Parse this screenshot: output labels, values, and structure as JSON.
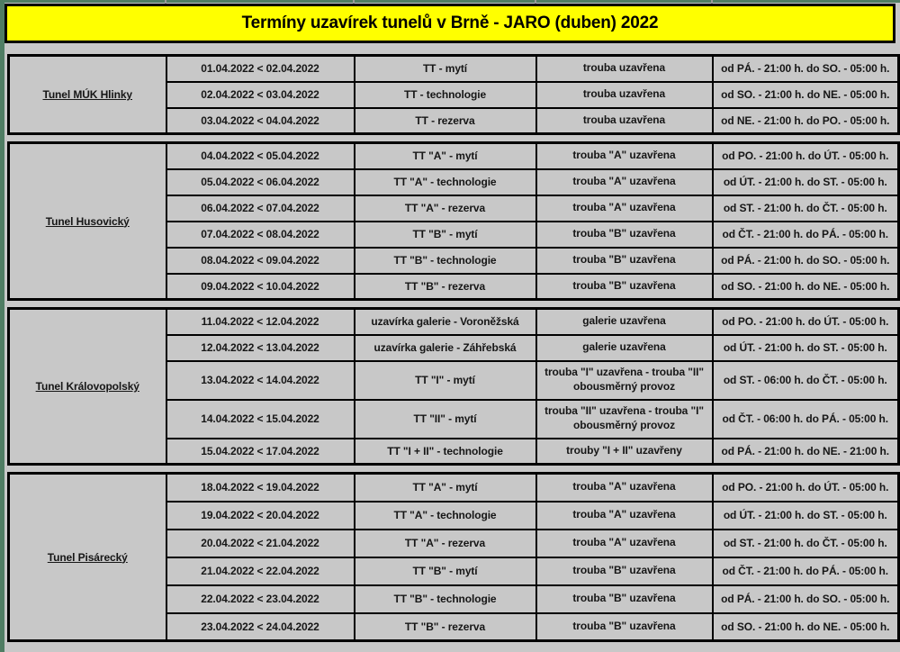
{
  "header": {
    "title": "Termíny uzavírek tunelů v Brně - JARO (duben) 2022"
  },
  "colors": {
    "title_bg": "#ffff00",
    "page_bg": "#c8c8c8",
    "grid_border": "#000000",
    "frame_green": "#4f7d63",
    "text": "#161616"
  },
  "table": {
    "groups": [
      {
        "tunnel": "Tunel MÚK Hlinky",
        "rows": [
          {
            "dates": "01.04.2022 < 02.04.2022",
            "closure": "TT - mytí",
            "status": "trouba uzavřena",
            "time": "od PÁ. - 21:00 h. do SO. - 05:00 h."
          },
          {
            "dates": "02.04.2022 < 03.04.2022",
            "closure": "TT - technologie",
            "status": "trouba uzavřena",
            "time": "od SO. - 21:00 h. do NE. - 05:00 h."
          },
          {
            "dates": "03.04.2022 < 04.04.2022",
            "closure": "TT - rezerva",
            "status": "trouba uzavřena",
            "time": "od NE. - 21:00 h. do PO. - 05:00 h."
          }
        ]
      },
      {
        "tunnel": "Tunel Husovický",
        "rows": [
          {
            "dates": "04.04.2022 < 05.04.2022",
            "closure": "TT \"A\" - mytí",
            "status": "trouba \"A\" uzavřena",
            "time": "od PO. - 21:00 h. do ÚT. - 05:00 h."
          },
          {
            "dates": "05.04.2022 < 06.04.2022",
            "closure": "TT \"A\" - technologie",
            "status": "trouba \"A\" uzavřena",
            "time": "od ÚT. - 21:00 h. do ST. - 05:00 h."
          },
          {
            "dates": "06.04.2022 < 07.04.2022",
            "closure": "TT \"A\" - rezerva",
            "status": "trouba \"A\" uzavřena",
            "time": "od ST. - 21:00 h. do ČT. - 05:00 h."
          },
          {
            "dates": "07.04.2022 < 08.04.2022",
            "closure": "TT \"B\" - mytí",
            "status": "trouba \"B\" uzavřena",
            "time": "od ČT. - 21:00 h. do PÁ. - 05:00 h."
          },
          {
            "dates": "08.04.2022 < 09.04.2022",
            "closure": "TT \"B\" - technologie",
            "status": "trouba \"B\" uzavřena",
            "time": "od PÁ. - 21:00 h. do SO. - 05:00 h."
          },
          {
            "dates": "09.04.2022 < 10.04.2022",
            "closure": "TT \"B\" - rezerva",
            "status": "trouba \"B\" uzavřena",
            "time": "od SO. - 21:00 h. do NE. - 05:00 h."
          }
        ]
      },
      {
        "tunnel": "Tunel Královopolský",
        "rows": [
          {
            "dates": "11.04.2022 < 12.04.2022",
            "closure": "uzavírka galerie - Voroněžská",
            "status": "galerie uzavřena",
            "time": "od PO. - 21:00 h. do ÚT. - 05:00 h."
          },
          {
            "dates": "12.04.2022 < 13.04.2022",
            "closure": "uzavírka galerie - Záhřebská",
            "status": "galerie uzavřena",
            "time": "od ÚT. - 21:00 h. do ST. - 05:00 h."
          },
          {
            "dates": "13.04.2022 < 14.04.2022",
            "closure": "TT \"I\" - mytí",
            "status": "trouba \"I\" uzavřena - trouba \"II\" obousměrný provoz",
            "time": "od ST. - 06:00 h. do ČT. - 05:00 h."
          },
          {
            "dates": "14.04.2022 < 15.04.2022",
            "closure": "TT \"II\" - mytí",
            "status": "trouba \"II\" uzavřena - trouba \"I\" obousměrný provoz",
            "time": "od ČT. - 06:00 h. do PÁ. - 05:00 h."
          },
          {
            "dates": "15.04.2022 < 17.04.2022",
            "closure": "TT \"I + II\" - technologie",
            "status": "trouby \"I + II\" uzavřeny",
            "time": "od PÁ. - 21:00 h. do NE. - 21:00 h."
          }
        ]
      },
      {
        "tunnel": "Tunel Pisárecký",
        "rows": [
          {
            "dates": "18.04.2022 < 19.04.2022",
            "closure": "TT \"A\" - mytí",
            "status": "trouba \"A\" uzavřena",
            "time": "od PO. - 21:00 h. do ÚT. - 05:00 h."
          },
          {
            "dates": "19.04.2022 < 20.04.2022",
            "closure": "TT \"A\" - technologie",
            "status": "trouba \"A\" uzavřena",
            "time": "od ÚT. - 21:00 h. do ST. - 05:00 h."
          },
          {
            "dates": "20.04.2022 < 21.04.2022",
            "closure": "TT \"A\" - rezerva",
            "status": "trouba \"A\" uzavřena",
            "time": "od ST. - 21:00 h. do ČT. - 05:00 h."
          },
          {
            "dates": "21.04.2022 < 22.04.2022",
            "closure": "TT \"B\" - mytí",
            "status": "trouba \"B\" uzavřena",
            "time": "od ČT. - 21:00 h. do PÁ. - 05:00 h."
          },
          {
            "dates": "22.04.2022 < 23.04.2022",
            "closure": "TT \"B\" - technologie",
            "status": "trouba \"B\" uzavřena",
            "time": "od PÁ. - 21:00 h. do SO. - 05:00 h."
          },
          {
            "dates": "23.04.2022 < 24.04.2022",
            "closure": "TT \"B\" - rezerva",
            "status": "trouba \"B\" uzavřena",
            "time": "od SO. - 21:00 h. do NE. - 05:00 h."
          }
        ]
      }
    ]
  }
}
